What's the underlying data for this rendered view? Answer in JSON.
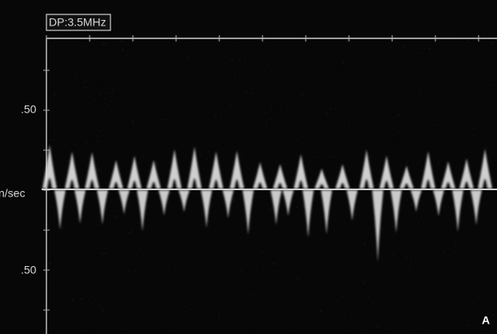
{
  "header": {
    "label": "DP:3.5MHz"
  },
  "axis": {
    "top_label": ".50",
    "unit_label": "n/sec",
    "bottom_label": ".50"
  },
  "panel_letter": "A"
}
